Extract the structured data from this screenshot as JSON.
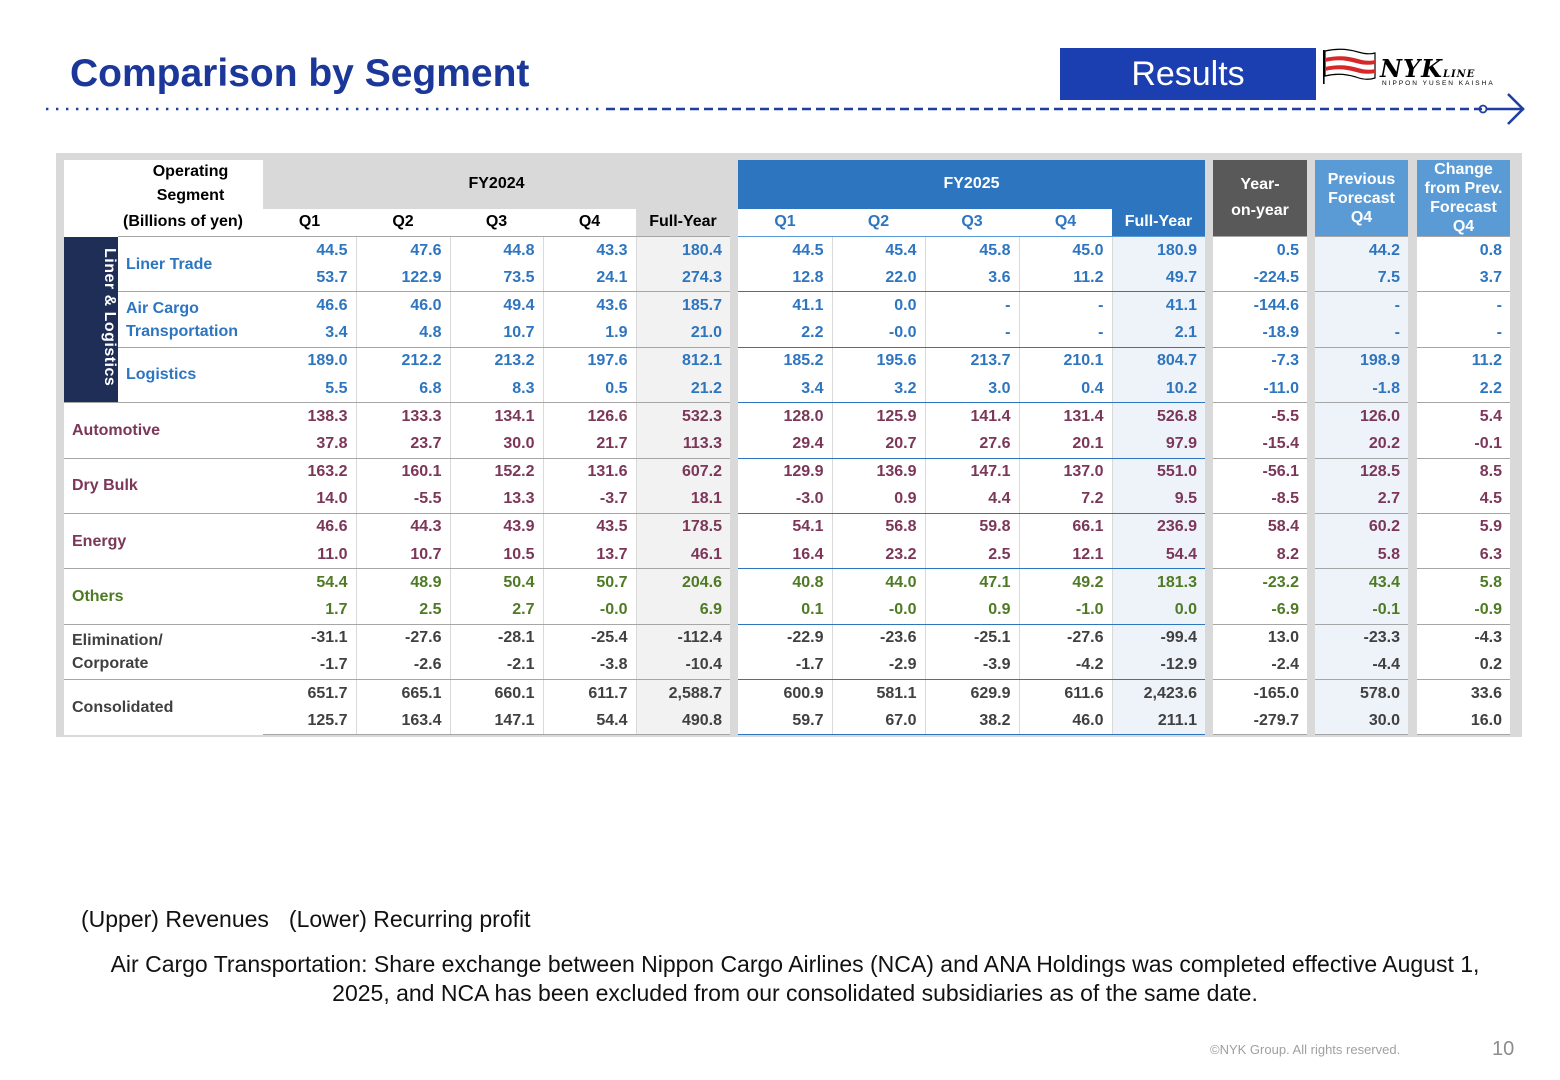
{
  "header": {
    "title": "Comparison by Segment",
    "badge": "Results",
    "logo_text": "NYK",
    "logo_suffix": "LINE",
    "logo_sub": "NIPPON YUSEN KAISHA"
  },
  "table": {
    "corner": {
      "line1": "Operating",
      "line2": "Segment",
      "unit": "(Billions of yen)"
    },
    "fy2024": "FY2024",
    "fy2025": "FY2025",
    "yoy": {
      "line1": "Year-",
      "line2": "on-year"
    },
    "prev": {
      "line1": "Previous",
      "line2": "Forecast",
      "line3": "Q4"
    },
    "chg": {
      "line1": "Change",
      "line2": "from Prev.",
      "line3": "Forecast",
      "line4": "Q4"
    },
    "quarters": [
      "Q1",
      "Q2",
      "Q3",
      "Q4",
      "Full-Year"
    ],
    "group_label": "Liner & Logistics",
    "segments": [
      {
        "label": "Liner Trade",
        "label2": "",
        "color": "#2e75c0",
        "upper": [
          "44.5",
          "47.6",
          "44.8",
          "43.3",
          "180.4",
          "44.5",
          "45.4",
          "45.8",
          "45.0",
          "180.9",
          "0.5",
          "44.2",
          "0.8"
        ],
        "lower": [
          "53.7",
          "122.9",
          "73.5",
          "24.1",
          "274.3",
          "12.8",
          "22.0",
          "3.6",
          "11.2",
          "49.7",
          "-224.5",
          "7.5",
          "3.7"
        ]
      },
      {
        "label": "Air Cargo",
        "label2": "Transportation",
        "color": "#2e75c0",
        "upper": [
          "46.6",
          "46.0",
          "49.4",
          "43.6",
          "185.7",
          "41.1",
          "0.0",
          "-",
          "-",
          "41.1",
          "-144.6",
          "-",
          "-"
        ],
        "lower": [
          "3.4",
          "4.8",
          "10.7",
          "1.9",
          "21.0",
          "2.2",
          "-0.0",
          "-",
          "-",
          "2.1",
          "-18.9",
          "-",
          "-"
        ]
      },
      {
        "label": "Logistics",
        "label2": "",
        "color": "#2e75c0",
        "upper": [
          "189.0",
          "212.2",
          "213.2",
          "197.6",
          "812.1",
          "185.2",
          "195.6",
          "213.7",
          "210.1",
          "804.7",
          "-7.3",
          "198.9",
          "11.2"
        ],
        "lower": [
          "5.5",
          "6.8",
          "8.3",
          "0.5",
          "21.2",
          "3.4",
          "3.2",
          "3.0",
          "0.4",
          "10.2",
          "-11.0",
          "-1.8",
          "2.2"
        ]
      },
      {
        "label": "Automotive",
        "label2": "",
        "color": "#7b3658",
        "upper": [
          "138.3",
          "133.3",
          "134.1",
          "126.6",
          "532.3",
          "128.0",
          "125.9",
          "141.4",
          "131.4",
          "526.8",
          "-5.5",
          "126.0",
          "5.4"
        ],
        "lower": [
          "37.8",
          "23.7",
          "30.0",
          "21.7",
          "113.3",
          "29.4",
          "20.7",
          "27.6",
          "20.1",
          "97.9",
          "-15.4",
          "20.2",
          "-0.1"
        ]
      },
      {
        "label": "Dry Bulk",
        "label2": "",
        "color": "#7b3658",
        "upper": [
          "163.2",
          "160.1",
          "152.2",
          "131.6",
          "607.2",
          "129.9",
          "136.9",
          "147.1",
          "137.0",
          "551.0",
          "-56.1",
          "128.5",
          "8.5"
        ],
        "lower": [
          "14.0",
          "-5.5",
          "13.3",
          "-3.7",
          "18.1",
          "-3.0",
          "0.9",
          "4.4",
          "7.2",
          "9.5",
          "-8.5",
          "2.7",
          "4.5"
        ]
      },
      {
        "label": "Energy",
        "label2": "",
        "color": "#7b3658",
        "upper": [
          "46.6",
          "44.3",
          "43.9",
          "43.5",
          "178.5",
          "54.1",
          "56.8",
          "59.8",
          "66.1",
          "236.9",
          "58.4",
          "60.2",
          "5.9"
        ],
        "lower": [
          "11.0",
          "10.7",
          "10.5",
          "13.7",
          "46.1",
          "16.4",
          "23.2",
          "2.5",
          "12.1",
          "54.4",
          "8.2",
          "5.8",
          "6.3"
        ]
      },
      {
        "label": "Others",
        "label2": "",
        "color": "#4e7a24",
        "upper": [
          "54.4",
          "48.9",
          "50.4",
          "50.7",
          "204.6",
          "40.8",
          "44.0",
          "47.1",
          "49.2",
          "181.3",
          "-23.2",
          "43.4",
          "5.8"
        ],
        "lower": [
          "1.7",
          "2.5",
          "2.7",
          "-0.0",
          "6.9",
          "0.1",
          "-0.0",
          "0.9",
          "-1.0",
          "0.0",
          "-6.9",
          "-0.1",
          "-0.9"
        ]
      },
      {
        "label": "Elimination/",
        "label2": "Corporate",
        "color": "#404040",
        "upper": [
          "-31.1",
          "-27.6",
          "-28.1",
          "-25.4",
          "-112.4",
          "-22.9",
          "-23.6",
          "-25.1",
          "-27.6",
          "-99.4",
          "13.0",
          "-23.3",
          "-4.3"
        ],
        "lower": [
          "-1.7",
          "-2.6",
          "-2.1",
          "-3.8",
          "-10.4",
          "-1.7",
          "-2.9",
          "-3.9",
          "-4.2",
          "-12.9",
          "-2.4",
          "-4.4",
          "0.2"
        ]
      },
      {
        "label": "Consolidated",
        "label2": "",
        "color": "#404040",
        "upper": [
          "651.7",
          "665.1",
          "660.1",
          "611.7",
          "2,588.7",
          "600.9",
          "581.1",
          "629.9",
          "611.6",
          "2,423.6",
          "-165.0",
          "578.0",
          "33.6"
        ],
        "lower": [
          "125.7",
          "163.4",
          "147.1",
          "54.4",
          "490.8",
          "59.7",
          "67.0",
          "38.2",
          "46.0",
          "211.1",
          "-279.7",
          "30.0",
          "16.0"
        ]
      }
    ]
  },
  "notes": {
    "upper": "(Upper) Revenues",
    "lower": "(Lower) Recurring profit",
    "air_cargo": "Air Cargo Transportation: Share exchange between Nippon Cargo Airlines (NCA) and ANA Holdings was completed effective August 1, 2025, and NCA has been excluded from our consolidated subsidiaries as of the same date."
  },
  "footer": {
    "copyright": "©NYK Group. All rights reserved.",
    "page": "10"
  }
}
